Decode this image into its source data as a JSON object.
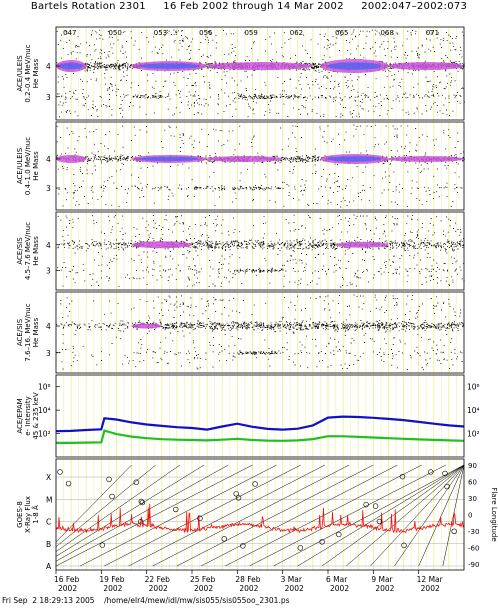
{
  "header": {
    "title": "Bartels Rotation 2301     16 Feb 2002 through 14 Mar 2002     2002:047–2002:073"
  },
  "footer": {
    "text": "Fri Sep  2 18:29:13 2005    /home/elr4/mew/idl/mw/sis055/sis055oo_2301.ps"
  },
  "chart_data": {
    "type": "multi-panel",
    "top_day_ticks": [
      "047",
      "050",
      "053",
      "056",
      "059",
      "062",
      "065",
      "068",
      "071"
    ],
    "x_date_labels": [
      {
        "day": "16 Feb",
        "year": "2002"
      },
      {
        "day": "19 Feb",
        "year": "2002"
      },
      {
        "day": "22 Feb",
        "year": "2002"
      },
      {
        "day": "25 Feb",
        "year": "2002"
      },
      {
        "day": "28 Feb",
        "year": "2002"
      },
      {
        "day": "3 Mar",
        "year": "2002"
      },
      {
        "day": "6 Mar",
        "year": "2002"
      },
      {
        "day": "9 Mar",
        "year": "2002"
      },
      {
        "day": "12 Mar",
        "year": "2002"
      }
    ],
    "panels": [
      {
        "id": "p1",
        "label_lines": [
          "ACE/ULEIS",
          "0.2–0.4 MeV/nuc",
          "He Mass"
        ],
        "yticks": [
          "4",
          "3"
        ],
        "type": "mass-histogram"
      },
      {
        "id": "p2",
        "label_lines": [
          "ACE/ULEIS",
          "0.4–1.0 MeV/nuc",
          "He Mass"
        ],
        "yticks": [
          "4",
          "3"
        ],
        "type": "mass-histogram"
      },
      {
        "id": "p3",
        "label_lines": [
          "ACE/SIS",
          "4.5–7.6 MeV/nuc",
          "He Mass"
        ],
        "yticks": [
          "4",
          "3"
        ],
        "type": "mass-histogram"
      },
      {
        "id": "p4",
        "label_lines": [
          "ACE/SIS",
          "7.6–16. MeV/nuc",
          "He Mass"
        ],
        "yticks": [
          "4",
          "3"
        ],
        "type": "mass-histogram"
      },
      {
        "id": "p5",
        "label_lines": [
          "ACE/EPAM",
          "e- Intensity",
          "45 & 235 keV"
        ],
        "yticks": [
          "10⁶",
          "10⁴",
          "10²"
        ],
        "type": "line",
        "series": [
          {
            "color": "#1010c8",
            "x": [
              0,
              1,
              2,
              3,
              3.2,
              4,
              5,
              6,
              7,
              8,
              9,
              10,
              11,
              12,
              13,
              14,
              15,
              16,
              17,
              18,
              19,
              20,
              21,
              22,
              23,
              24,
              25,
              26,
              27
            ],
            "y": [
              160,
              170,
              200,
              230,
              2000,
              1600,
              900,
              600,
              450,
              350,
              300,
              220,
              400,
              700,
              380,
              250,
              220,
              260,
              500,
              2300,
              2800,
              2600,
              2200,
              1800,
              1400,
              1000,
              700,
              500,
              400
            ]
          },
          {
            "color": "#20c020",
            "x": [
              0,
              1,
              2,
              3,
              3.2,
              4,
              5,
              6,
              7,
              8,
              9,
              10,
              11,
              12,
              13,
              14,
              15,
              16,
              17,
              18,
              19,
              20,
              21,
              22,
              23,
              24,
              25,
              26,
              27
            ],
            "y": [
              16,
              16,
              17,
              18,
              180,
              90,
              55,
              40,
              33,
              30,
              28,
              26,
              30,
              36,
              28,
              25,
              24,
              26,
              34,
              60,
              58,
              52,
              46,
              40,
              36,
              32,
              29,
              26,
              24
            ]
          }
        ]
      },
      {
        "id": "p6",
        "label_lines": [
          "GOES-8",
          "X-Ray Flux",
          "1-8 Å"
        ],
        "yticks": [
          "X",
          "M",
          "C",
          "B",
          "A"
        ],
        "yticks_right": [
          "90",
          "60",
          "30",
          "0",
          "-30",
          "-60",
          "-90"
        ],
        "right_label": "Flare Longitude",
        "type": "xray-flux"
      }
    ]
  }
}
